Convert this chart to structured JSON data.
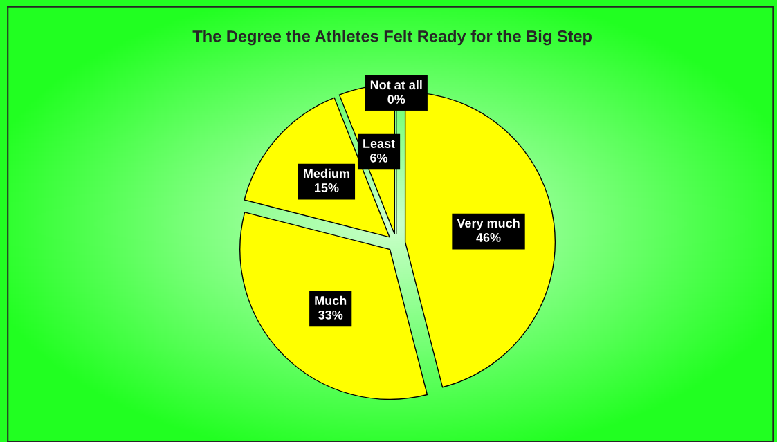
{
  "chart_data": {
    "type": "pie",
    "title": "The Degree the Athletes Felt Ready for the Big Step",
    "categories": [
      "Very much",
      "Much",
      "Medium",
      "Least",
      "Not at all"
    ],
    "values": [
      46,
      33,
      15,
      6,
      0
    ],
    "value_labels": [
      "46%",
      "33%",
      "15%",
      "6%",
      "0%"
    ],
    "colors": [
      "#ffff00",
      "#ffff00",
      "#ffff00",
      "#ffff00",
      "#ffff00"
    ]
  }
}
